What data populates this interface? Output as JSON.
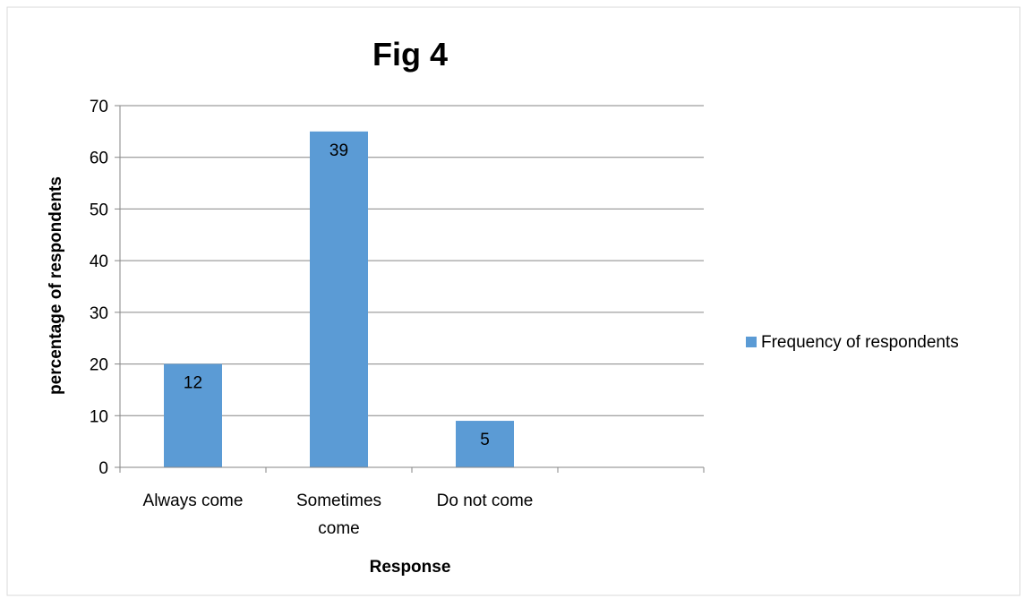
{
  "chart_data": {
    "type": "bar",
    "title": "Fig 4",
    "xlabel": "Response",
    "ylabel": "percentage of respondents",
    "categories": [
      "Always come",
      "Sometimes come",
      "Do not come",
      ""
    ],
    "series": [
      {
        "name": "Frequency of respondents",
        "values": [
          20,
          65,
          9,
          null
        ],
        "data_labels": [
          "12",
          "39",
          "5",
          null
        ]
      }
    ],
    "ylim": [
      0,
      70
    ],
    "yticks": [
      0,
      10,
      20,
      30,
      40,
      50,
      60,
      70
    ],
    "grid": true,
    "legend_position": "right",
    "colors": {
      "bar": "#5b9bd5",
      "grid": "#868686",
      "axis": "#868686"
    }
  }
}
